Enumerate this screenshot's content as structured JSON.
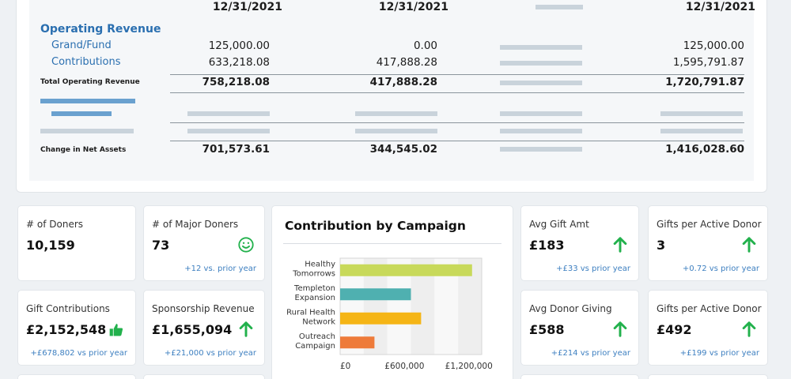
{
  "table": {
    "header_dates": [
      "12/31/2021",
      "12/31/2021",
      "12/31/2021"
    ],
    "section_title": "Operating Revenue",
    "rows": [
      {
        "label": "Grand/Fund",
        "col1": "125,000.00",
        "col2": "0.00",
        "col4": "125,000.00"
      },
      {
        "label": "Contributions",
        "col1": "633,218.08",
        "col2": "417,888.28",
        "col4": "1,595,791.87"
      }
    ],
    "total_label": "Total Operating Revenue",
    "total": {
      "col1": "758,218.08",
      "col2": "417,888.28",
      "col4": "1,720,791.87"
    },
    "net_label": "Change in Net Assets",
    "net": {
      "col1": "701,573.61",
      "col2": "344,545.02",
      "col4": "1,416,028.60"
    }
  },
  "kpis": {
    "donors": {
      "title": "# of Doners",
      "value": "10,159"
    },
    "major_donors": {
      "title": "# of Major Doners",
      "value": "73",
      "sub": "+12 vs. prior year",
      "icon": "smiley-icon"
    },
    "gift_contributions": {
      "title": "Gift Contributions",
      "value": "£2,152,548",
      "sub": "+£678,802 vs prior year",
      "icon": "thumbs-up-icon"
    },
    "sponsorship_revenue": {
      "title": "Sponsorship Revenue",
      "value": "£1,655,094",
      "sub": "+£21,000 vs prior year",
      "icon": "arrow-up-icon"
    },
    "avg_gift": {
      "title": "Avg Gift Amt",
      "value": "£183",
      "sub": "+£33 vs prior year",
      "icon": "arrow-up-icon"
    },
    "gifts_per_donor_1": {
      "title": "Gifts per Active Donor",
      "value": "3",
      "sub": "+0.72 vs prior year",
      "icon": "arrow-up-icon"
    },
    "avg_donor_giving": {
      "title": "Avg Donor Giving",
      "value": "£588",
      "sub": "+£214 vs prior year",
      "icon": "arrow-up-icon"
    },
    "gifts_per_donor_2": {
      "title": "Gifts per Active Donor",
      "value": "£492",
      "sub": "+£199 vs prior year",
      "icon": "arrow-up-icon"
    }
  },
  "colors": {
    "accent_blue": "#2a6fb0",
    "positive_green": "#22b14c"
  },
  "chart_data": {
    "type": "bar",
    "orientation": "horizontal",
    "title": "Contribution by Campaign",
    "categories": [
      "Healthy Tomorrows",
      "Templeton Expansion",
      "Rural Health Network",
      "Outreach Campaign"
    ],
    "category_lines": [
      [
        "Healthy",
        "Tomorrows"
      ],
      [
        "Templeton",
        "Expansion"
      ],
      [
        "Rural Health",
        "Network"
      ],
      [
        "Outreach",
        "Campaign"
      ]
    ],
    "values": [
      1230000,
      660000,
      755000,
      320000
    ],
    "colors": [
      "#c8d95a",
      "#4fb0b0",
      "#f5b516",
      "#ee7b3a"
    ],
    "xlim": [
      0,
      1320000
    ],
    "xticks": [
      0,
      600000,
      1200000
    ],
    "xtick_labels": [
      "£0",
      "£600,000",
      "£1,200,000"
    ],
    "xlabel": "",
    "ylabel": ""
  }
}
